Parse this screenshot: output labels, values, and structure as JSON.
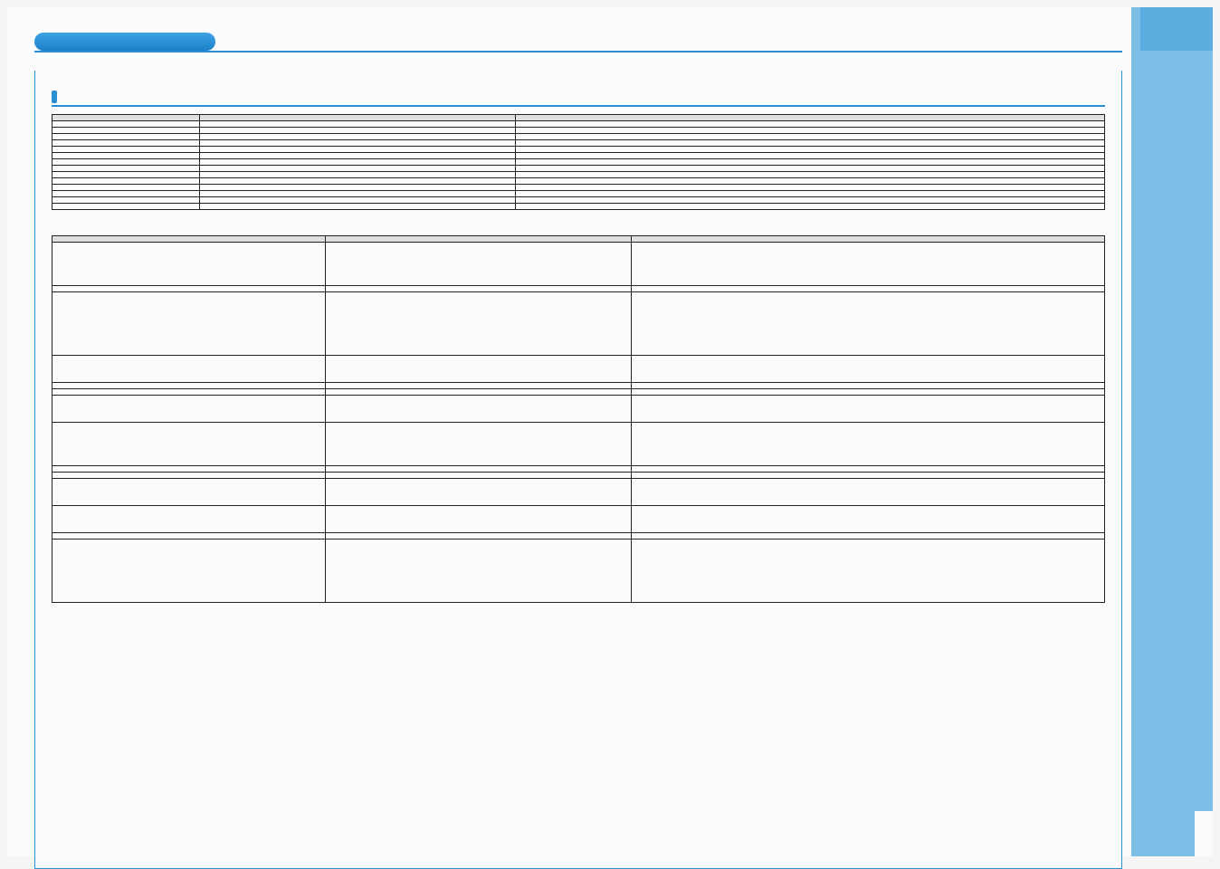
{
  "colors": {
    "sidebar": "#7ebde6",
    "sidebar_dark": "#5cace0",
    "accent": "#2a8fd4",
    "header_grad_top": "#3fa4e4",
    "header_grad_bottom": "#1b7fc8",
    "page_bg": "#fafbfc",
    "table_header": "#e0e0e0",
    "border": "#222222"
  },
  "table1": {
    "columns": [
      "",
      "",
      ""
    ],
    "col_widths": [
      "14%",
      "30%",
      "56%"
    ],
    "rows": [
      [
        "",
        "",
        ""
      ],
      [
        "",
        "",
        ""
      ],
      [
        "",
        "",
        ""
      ],
      [
        "",
        "",
        ""
      ],
      [
        "",
        "",
        ""
      ],
      [
        "",
        "",
        ""
      ],
      [
        "",
        "",
        ""
      ],
      [
        "",
        "",
        ""
      ],
      [
        "",
        "",
        ""
      ],
      [
        "",
        "",
        ""
      ],
      [
        "",
        "",
        ""
      ],
      [
        "",
        "",
        ""
      ],
      [
        "",
        "",
        ""
      ],
      [
        "",
        "",
        ""
      ]
    ]
  },
  "table2": {
    "columns": [
      "",
      "",
      ""
    ],
    "col_widths": [
      "26%",
      "29%",
      "45%"
    ],
    "row_heights": [
      "tall",
      "short",
      "xtall",
      "med",
      "short",
      "short",
      "med",
      "tall",
      "short",
      "short",
      "med",
      "med",
      "short",
      "xtall"
    ],
    "rows": [
      [
        "",
        "",
        ""
      ],
      [
        "",
        "",
        ""
      ],
      [
        "",
        "",
        ""
      ],
      [
        "",
        "",
        ""
      ],
      [
        "",
        "",
        ""
      ],
      [
        "",
        "",
        ""
      ],
      [
        "",
        "",
        ""
      ],
      [
        "",
        "",
        ""
      ],
      [
        "",
        "",
        ""
      ],
      [
        "",
        "",
        ""
      ],
      [
        "",
        "",
        ""
      ],
      [
        "",
        "",
        ""
      ],
      [
        "",
        "",
        ""
      ],
      [
        "",
        "",
        ""
      ]
    ]
  }
}
